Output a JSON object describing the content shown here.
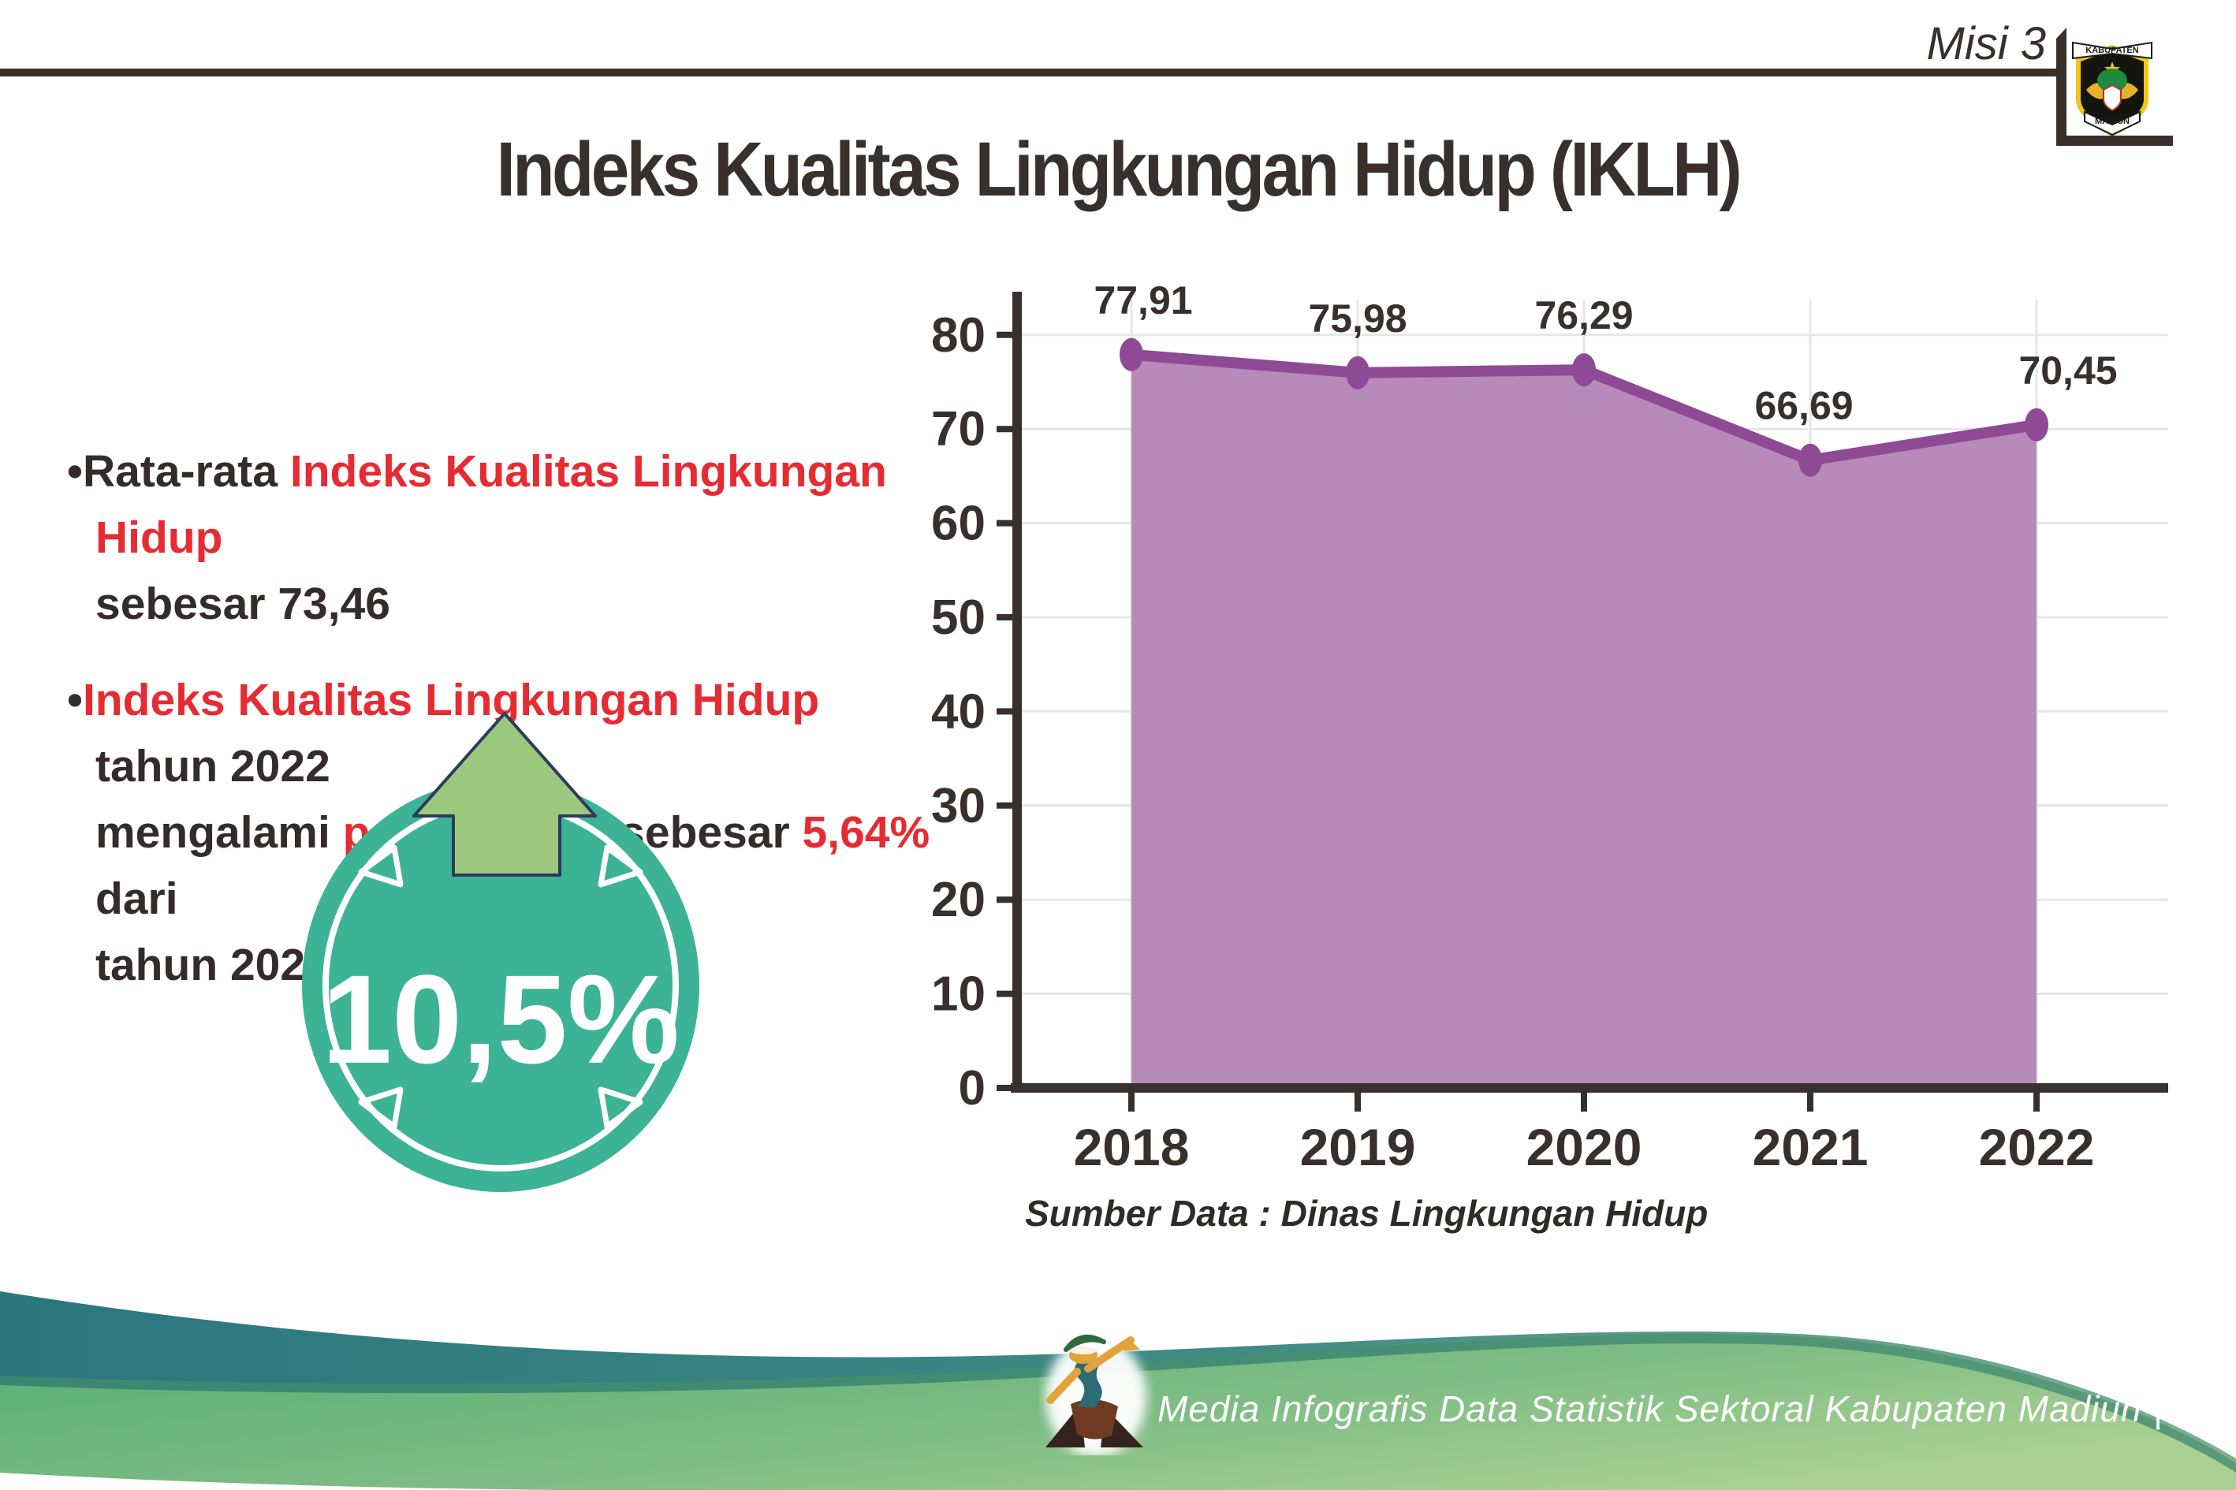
{
  "header": {
    "misi": "Misi 3",
    "title": "Indeks Kualitas Lingkungan Hidup (IKLH)",
    "logo": {
      "top": "KABUPATEN",
      "bottom": "MADIUN"
    }
  },
  "bullets": {
    "b1": {
      "black1": "Rata-rata ",
      "red1": "Indeks Kualitas Lingkungan Hidup",
      "line2": "sebesar 73,46"
    },
    "b2": {
      "red1": "Indeks Kualitas Lingkungan Hidup",
      "black1": " tahun 2022",
      "l2_black1": "mengalami ",
      "l2_red1": "peningkatan",
      "l2_black2": " sebesar ",
      "l2_red2": "5,64%",
      "l2_black3": " dari",
      "line3": "tahun 2021"
    }
  },
  "badge": {
    "value": "10,5%",
    "circle_color": "#3cb394",
    "arrow_color": "#9cc87e",
    "arrow_icon": "arrow-up-icon"
  },
  "chart_data": {
    "type": "area",
    "title": "",
    "categories": [
      "2018",
      "2019",
      "2020",
      "2021",
      "2022"
    ],
    "values": [
      77.91,
      75.98,
      76.29,
      66.69,
      70.45
    ],
    "value_labels": [
      "77,91",
      "75,98",
      "76,29",
      "66,69",
      "70,45"
    ],
    "y_ticks": [
      0,
      10,
      20,
      30,
      40,
      50,
      60,
      70,
      80
    ],
    "ylim": [
      0,
      85
    ],
    "grid": true,
    "legend": "none",
    "line_color": "#8e4a95",
    "fill_color": "#b78ab9",
    "axis_color": "#38302c",
    "grid_color": "#e7e5e5",
    "source": "Sumber Data : Dinas Lingkungan Hidup"
  },
  "footer": {
    "credit": "Media Infografis Data Statistik Sektoral Kabupaten Madiun |"
  },
  "colors": {
    "accent_red": "#e62b32",
    "text_dark": "#38302c",
    "wave_teal": "#2c767e",
    "wave_green": "#57ad76"
  }
}
